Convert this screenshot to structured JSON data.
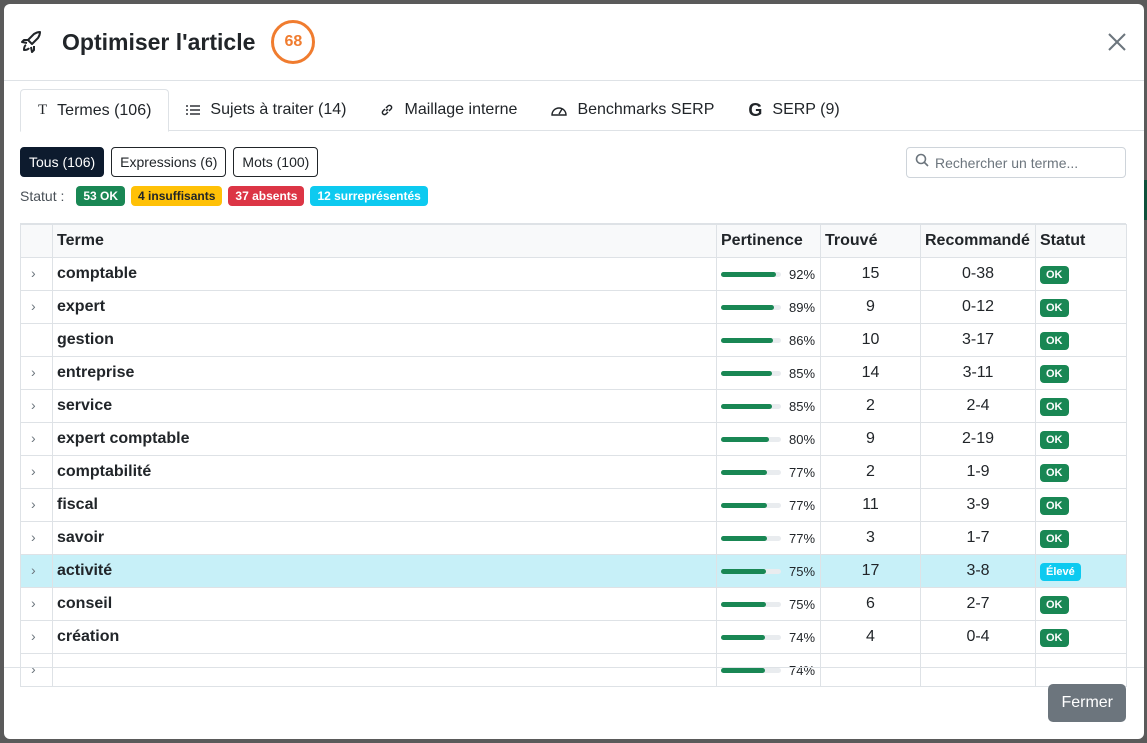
{
  "modal": {
    "title": "Optimiser l'article",
    "score": "68"
  },
  "tabs": [
    {
      "label": "Termes (106)",
      "icon": "T"
    },
    {
      "label": "Sujets à traiter (14)",
      "icon": "list-icon"
    },
    {
      "label": "Maillage interne",
      "icon": "link-icon"
    },
    {
      "label": "Benchmarks SERP",
      "icon": "gauge-icon"
    },
    {
      "label": "SERP (9)",
      "icon": "google-icon"
    }
  ],
  "filters": [
    "Tous (106)",
    "Expressions (6)",
    "Mots (100)"
  ],
  "search": {
    "placeholder": "Rechercher un terme..."
  },
  "status": {
    "label": "Statut :",
    "ok": "53 OK",
    "insufficient": "4 insuffisants",
    "absent": "37 absents",
    "over": "12 surreprésentés"
  },
  "table": {
    "headers": [
      "Terme",
      "Pertinence",
      "Trouvé",
      "Recommandé",
      "Statut"
    ],
    "rows": [
      {
        "term": "comptable",
        "pct": 92,
        "pct_label": "92%",
        "found": "15",
        "rec": "0-38",
        "status": "OK",
        "chev": true
      },
      {
        "term": "expert",
        "pct": 89,
        "pct_label": "89%",
        "found": "9",
        "rec": "0-12",
        "status": "OK",
        "chev": true
      },
      {
        "term": "gestion",
        "pct": 86,
        "pct_label": "86%",
        "found": "10",
        "rec": "3-17",
        "status": "OK",
        "chev": false
      },
      {
        "term": "entreprise",
        "pct": 85,
        "pct_label": "85%",
        "found": "14",
        "rec": "3-11",
        "status": "OK",
        "chev": true
      },
      {
        "term": "service",
        "pct": 85,
        "pct_label": "85%",
        "found": "2",
        "rec": "2-4",
        "status": "OK",
        "chev": true
      },
      {
        "term": "expert comptable",
        "pct": 80,
        "pct_label": "80%",
        "found": "9",
        "rec": "2-19",
        "status": "OK",
        "chev": true
      },
      {
        "term": "comptabilité",
        "pct": 77,
        "pct_label": "77%",
        "found": "2",
        "rec": "1-9",
        "status": "OK",
        "chev": true
      },
      {
        "term": "fiscal",
        "pct": 77,
        "pct_label": "77%",
        "found": "11",
        "rec": "3-9",
        "status": "OK",
        "chev": true
      },
      {
        "term": "savoir",
        "pct": 77,
        "pct_label": "77%",
        "found": "3",
        "rec": "1-7",
        "status": "OK",
        "chev": true
      },
      {
        "term": "activité",
        "pct": 75,
        "pct_label": "75%",
        "found": "17",
        "rec": "3-8",
        "status": "Élevé",
        "chev": true,
        "highlight": true
      },
      {
        "term": "conseil",
        "pct": 75,
        "pct_label": "75%",
        "found": "6",
        "rec": "2-7",
        "status": "OK",
        "chev": true
      },
      {
        "term": "création",
        "pct": 74,
        "pct_label": "74%",
        "found": "4",
        "rec": "0-4",
        "status": "OK",
        "chev": true
      },
      {
        "term": "",
        "pct": 74,
        "pct_label": "74%",
        "found": "",
        "rec": "",
        "status": "",
        "chev": true
      }
    ]
  },
  "footer": {
    "close_label": "Fermer"
  }
}
